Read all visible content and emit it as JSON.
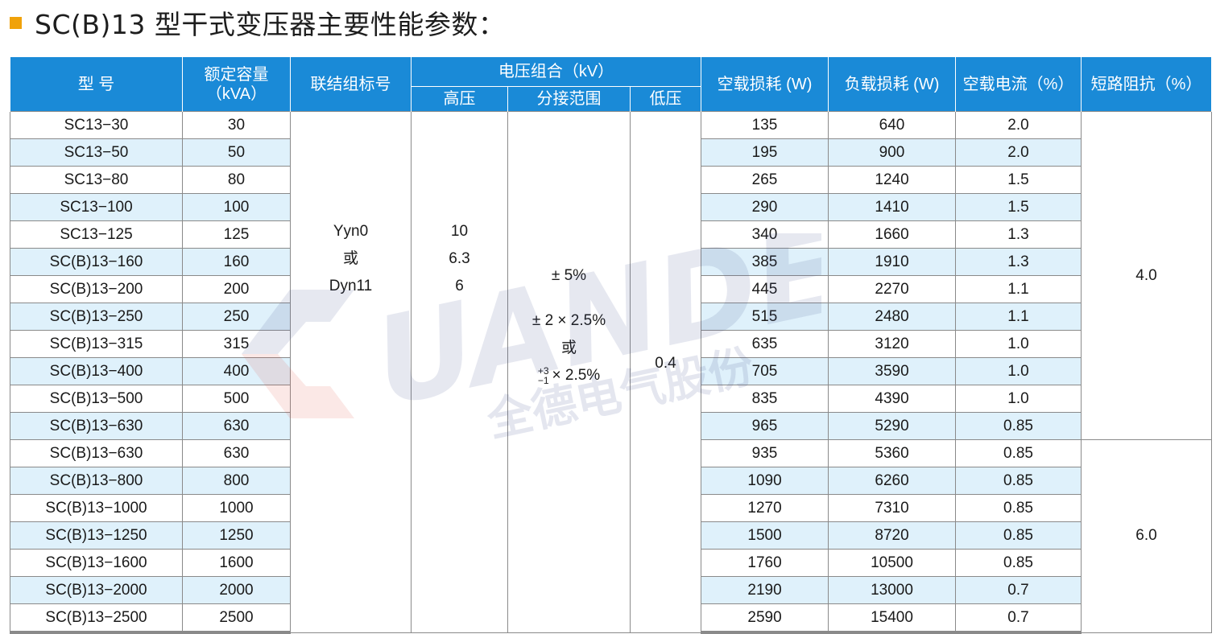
{
  "title": "SC(B)13 型干式变压器主要性能参数：",
  "watermark": {
    "brand": "UANDE",
    "company": "全德电气股份"
  },
  "headers": {
    "model": "型  号",
    "capacity_line1": "额定容量",
    "capacity_line2": "（kVA）",
    "connection": "联结组标号",
    "voltage_group": "电压组合（kV）",
    "hv": "高压",
    "tap": "分接范围",
    "lv": "低压",
    "no_load_loss": "空载损耗 (W)",
    "load_loss": "负载损耗 (W)",
    "no_load_current": "空载电流（%）",
    "impedance": "短路阻抗（%）"
  },
  "merged": {
    "connection": [
      "Yyn0",
      "或",
      "Dyn11"
    ],
    "hv": [
      "10",
      "6.3",
      "6"
    ],
    "tap_a": "± 5%",
    "tap_b": "± 2 × 2.5%",
    "tap_or": "或",
    "tap_c_sup": "+3",
    "tap_c_sub": "−1",
    "tap_c": "× 2.5%",
    "lv": "0.4",
    "impedance_1": "4.0",
    "impedance_2": "6.0"
  },
  "rows": [
    {
      "model": "SC13−30",
      "capacity": "30",
      "no_load": "135",
      "load": "640",
      "current": "2.0"
    },
    {
      "model": "SC13−50",
      "capacity": "50",
      "no_load": "195",
      "load": "900",
      "current": "2.0"
    },
    {
      "model": "SC13−80",
      "capacity": "80",
      "no_load": "265",
      "load": "1240",
      "current": "1.5"
    },
    {
      "model": "SC13−100",
      "capacity": "100",
      "no_load": "290",
      "load": "1410",
      "current": "1.5"
    },
    {
      "model": "SC13−125",
      "capacity": "125",
      "no_load": "340",
      "load": "1660",
      "current": "1.3"
    },
    {
      "model": "SC(B)13−160",
      "capacity": "160",
      "no_load": "385",
      "load": "1910",
      "current": "1.3"
    },
    {
      "model": "SC(B)13−200",
      "capacity": "200",
      "no_load": "445",
      "load": "2270",
      "current": "1.1"
    },
    {
      "model": "SC(B)13−250",
      "capacity": "250",
      "no_load": "515",
      "load": "2480",
      "current": "1.1"
    },
    {
      "model": "SC(B)13−315",
      "capacity": "315",
      "no_load": "635",
      "load": "3120",
      "current": "1.0"
    },
    {
      "model": "SC(B)13−400",
      "capacity": "400",
      "no_load": "705",
      "load": "3590",
      "current": "1.0"
    },
    {
      "model": "SC(B)13−500",
      "capacity": "500",
      "no_load": "835",
      "load": "4390",
      "current": "1.0"
    },
    {
      "model": "SC(B)13−630",
      "capacity": "630",
      "no_load": "965",
      "load": "5290",
      "current": "0.85"
    },
    {
      "model": "SC(B)13−630",
      "capacity": "630",
      "no_load": "935",
      "load": "5360",
      "current": "0.85"
    },
    {
      "model": "SC(B)13−800",
      "capacity": "800",
      "no_load": "1090",
      "load": "6260",
      "current": "0.85"
    },
    {
      "model": "SC(B)13−1000",
      "capacity": "1000",
      "no_load": "1270",
      "load": "7310",
      "current": "0.85"
    },
    {
      "model": "SC(B)13−1250",
      "capacity": "1250",
      "no_load": "1500",
      "load": "8720",
      "current": "0.85"
    },
    {
      "model": "SC(B)13−1600",
      "capacity": "1600",
      "no_load": "1760",
      "load": "10500",
      "current": "0.85"
    },
    {
      "model": "SC(B)13−2000",
      "capacity": "2000",
      "no_load": "2190",
      "load": "13000",
      "current": "0.7"
    },
    {
      "model": "SC(B)13−2500",
      "capacity": "2500",
      "no_load": "2590",
      "load": "15400",
      "current": "0.7"
    }
  ]
}
